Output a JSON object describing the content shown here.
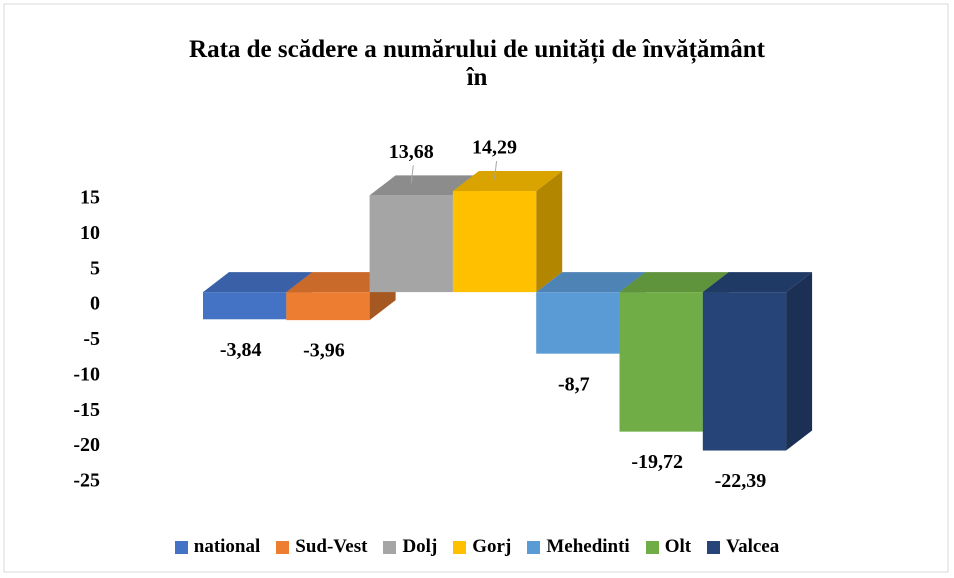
{
  "chart_data": {
    "type": "bar",
    "title": "Rata de scădere a numărului de unități de învățământ în",
    "ylim": [
      -25,
      15
    ],
    "yticks": [
      15,
      10,
      5,
      0,
      -5,
      -10,
      -15,
      -20,
      -25
    ],
    "legend": "bottom",
    "series": [
      {
        "name": "national",
        "color": "#4472c4",
        "values": [
          -3.84
        ],
        "value_labels": [
          "-3,84"
        ]
      },
      {
        "name": "Sud-Vest",
        "color": "#ed7d31",
        "values": [
          -3.96
        ],
        "value_labels": [
          "-3,96"
        ]
      },
      {
        "name": "Dolj",
        "color": "#a5a5a5",
        "values": [
          13.68
        ],
        "value_labels": [
          "13,68"
        ]
      },
      {
        "name": "Gorj",
        "color": "#ffc000",
        "values": [
          14.29
        ],
        "value_labels": [
          "14,29"
        ]
      },
      {
        "name": "Mehedinti",
        "color": "#5b9bd5",
        "values": [
          -8.7
        ],
        "value_labels": [
          "-8,7"
        ]
      },
      {
        "name": "Olt",
        "color": "#70ad47",
        "values": [
          -19.72
        ],
        "value_labels": [
          "-19,72"
        ]
      },
      {
        "name": "Valcea",
        "color": "#264478",
        "values": [
          -22.39
        ],
        "value_labels": [
          "-22,39"
        ]
      }
    ]
  }
}
